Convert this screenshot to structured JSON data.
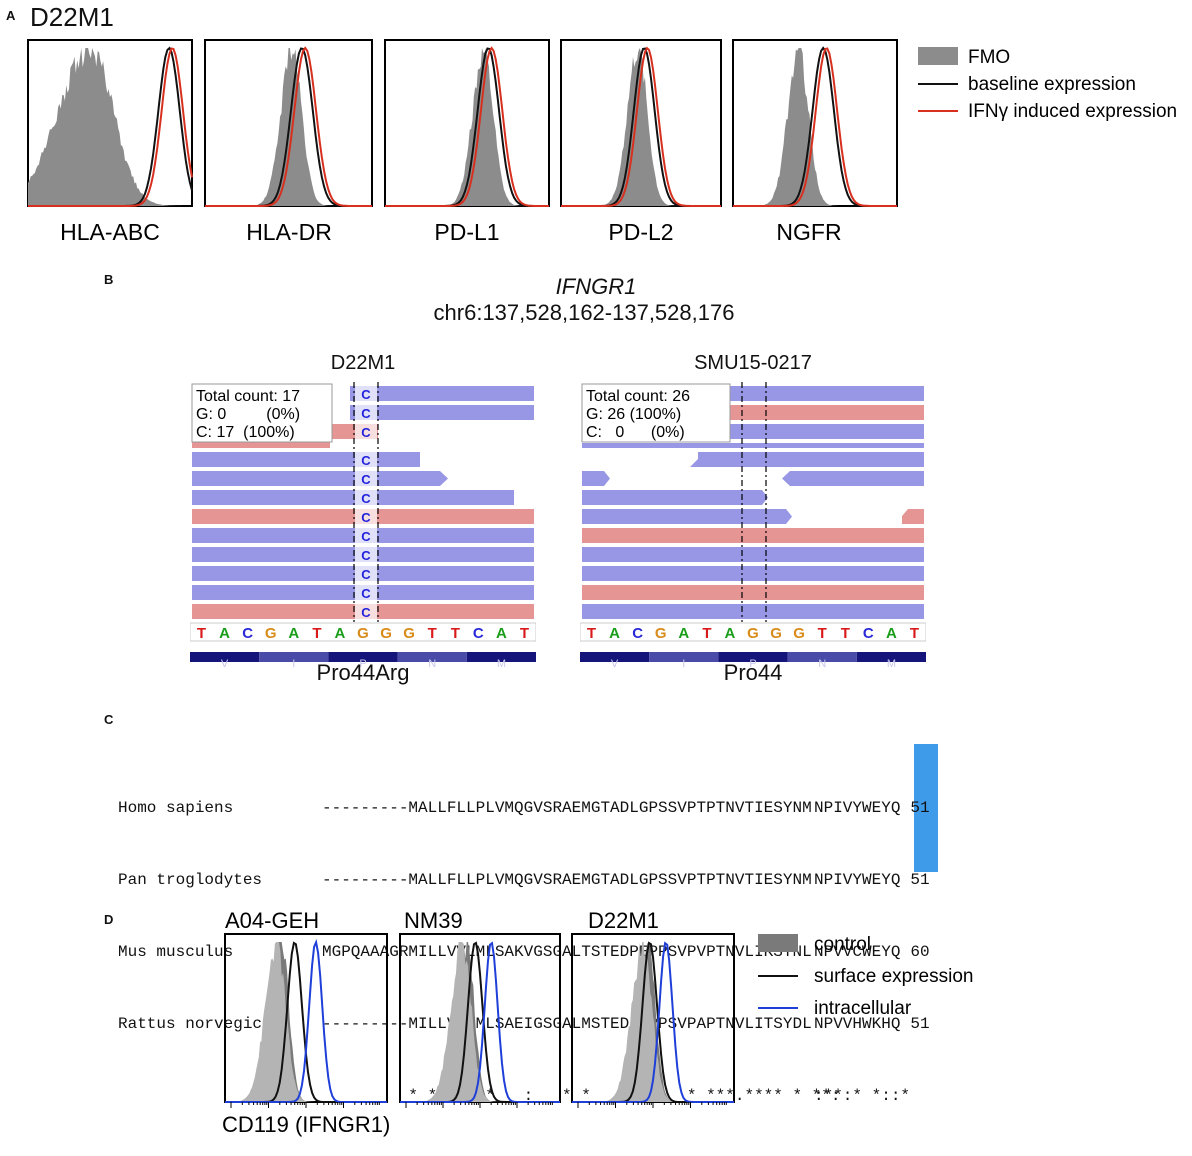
{
  "colors": {
    "fmo_fill": "#8c8c8c",
    "baseline": "#111111",
    "ifng": "#d7301f",
    "read_blue": "#9797e6",
    "read_red": "#e69595",
    "aa_bar": "#14147a",
    "highlight": "#3d9be9",
    "intracellular": "#1f3fd9",
    "control_fill": "#7a7a7a"
  },
  "panel_a": {
    "label": "A",
    "title": "D22M1",
    "plots": [
      {
        "marker": "HLA-ABC",
        "fmo_mode": 0.38,
        "base_mode": 0.86,
        "ifng_mode": 0.88
      },
      {
        "marker": "HLA-DR",
        "fmo_mode": 0.52,
        "base_mode": 0.58,
        "ifng_mode": 0.6
      },
      {
        "marker": "PD-L1",
        "fmo_mode": 0.6,
        "base_mode": 0.63,
        "ifng_mode": 0.65
      },
      {
        "marker": "PD-L2",
        "fmo_mode": 0.48,
        "base_mode": 0.52,
        "ifng_mode": 0.54
      },
      {
        "marker": "NGFR",
        "fmo_mode": 0.4,
        "base_mode": 0.55,
        "ifng_mode": 0.57
      }
    ],
    "legend": [
      "FMO",
      "baseline expression",
      "IFNγ induced expression"
    ]
  },
  "panel_b": {
    "label": "B",
    "gene": "IFNGR1",
    "locus": "chr6:137,528,162-137,528,176",
    "samples": [
      {
        "name": "D22M1",
        "box": [
          "Total count: 17",
          "G: 0         (0%)",
          "C: 17  (100%)"
        ],
        "variant_call": "C",
        "variant_label": "Pro44Arg"
      },
      {
        "name": "SMU15-0217",
        "box": [
          "Total count: 26",
          "G: 26 (100%)",
          "C:   0      (0%)"
        ],
        "variant_label": "Pro44"
      }
    ],
    "sequence": [
      "T",
      "A",
      "C",
      "G",
      "A",
      "T",
      "A",
      "G",
      "G",
      "G",
      "T",
      "T",
      "C",
      "A",
      "T"
    ],
    "amino_acids": [
      "V",
      "I",
      "P",
      "N",
      "M"
    ]
  },
  "panel_c": {
    "label": "C",
    "rows": [
      {
        "species": "Homo sapiens",
        "pre": "---------MALLFLLPLVMQGVSRAEMGTADLGPSSVPTPTNVTIESYNM",
        "hl": "NP",
        "post": "IVYWEYQ",
        "num": "51"
      },
      {
        "species": "Pan troglodytes",
        "pre": "---------MALLFLLPLVMQGVSRAEMGTADLGPSSVPTPTNVTIESYNM",
        "hl": "NP",
        "post": "IVYWEYQ",
        "num": "51"
      },
      {
        "species": "Mus musculus",
        "pre": "MGPQAAAGRMILLVVLMLSAKVGSGALTSTEDPEPPSVPVPTNVLIKSYNL",
        "hl": "NP",
        "post": "VVCWEYQ",
        "num": "60"
      },
      {
        "species": "Rattus norvegicus",
        "pre": "---------MILLVVLMLSAEIGSGALMSTEDPKPPSVPAPTNVLITSYDL",
        "hl": "NP",
        "post": "VVHWKHQ",
        "num": "51"
      }
    ],
    "consensus": {
      "pre": "         * **.:* *   :   * *   .* *   * ***.**** * **:",
      "hl": ":*",
      "post": "*:* *::*"
    }
  },
  "panel_d": {
    "label": "D",
    "plots": [
      {
        "title": "A04-GEH",
        "ctrl_mode": 0.35,
        "surf_mode": 0.43,
        "intra_mode": 0.56
      },
      {
        "title": "NM39",
        "ctrl_mode": 0.42,
        "surf_mode": 0.47,
        "intra_mode": 0.57
      },
      {
        "title": "D22M1",
        "ctrl_mode": 0.47,
        "surf_mode": 0.48,
        "intra_mode": 0.58
      }
    ],
    "legend": [
      "control",
      "surface expression",
      "intracellular"
    ],
    "xlabel": "CD119 (IFNGR1)"
  }
}
